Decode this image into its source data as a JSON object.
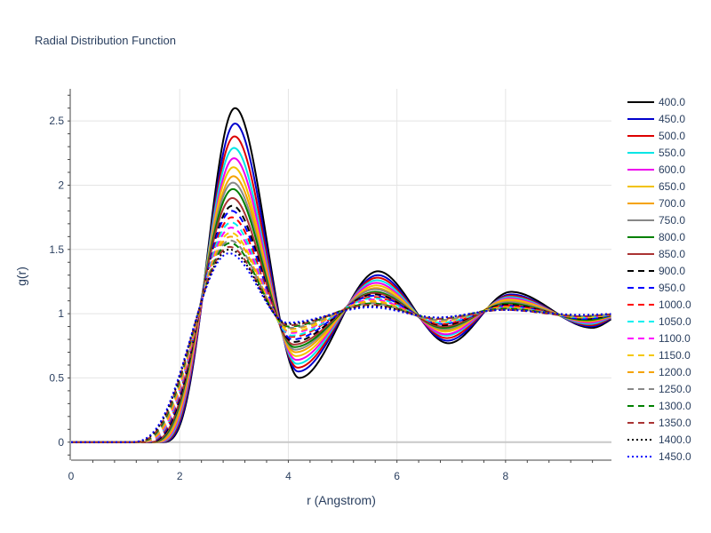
{
  "chart_data": {
    "type": "line",
    "title": "Radial Distribution Function",
    "xlabel": "r (Angstrom)",
    "ylabel": "g(r)",
    "xlim": [
      0,
      9.95
    ],
    "ylim": [
      -0.14,
      2.75
    ],
    "x_ticks": [
      0,
      2,
      4,
      6,
      8
    ],
    "y_ticks": [
      0,
      0.5,
      1,
      1.5,
      2,
      2.5
    ],
    "x_tick_labels": [
      "0",
      "2",
      "4",
      "6",
      "8"
    ],
    "y_tick_labels": [
      "0",
      "0.5",
      "1",
      "1.5",
      "2",
      "2.5"
    ],
    "grid": true,
    "legend_position": "right",
    "series": [
      {
        "name": "400.0",
        "color": "#000000",
        "dash": "solid",
        "peak1": [
          3.02,
          2.6
        ],
        "min1": [
          4.2,
          0.5
        ],
        "peak2": [
          5.65,
          1.33
        ],
        "min2": [
          6.95,
          0.77
        ],
        "peak3": [
          8.1,
          1.17
        ],
        "min3": [
          9.6,
          0.89
        ],
        "rise": 2.2
      },
      {
        "name": "450.0",
        "color": "#0000cc",
        "dash": "solid",
        "peak1": [
          3.02,
          2.48
        ],
        "min1": [
          4.18,
          0.55
        ],
        "peak2": [
          5.65,
          1.3
        ],
        "min2": [
          6.93,
          0.79
        ],
        "peak3": [
          8.1,
          1.15
        ],
        "min3": [
          9.58,
          0.9
        ],
        "rise": 2.17
      },
      {
        "name": "500.0",
        "color": "#dd0000",
        "dash": "solid",
        "peak1": [
          3.01,
          2.38
        ],
        "min1": [
          4.17,
          0.58
        ],
        "peak2": [
          5.64,
          1.28
        ],
        "min2": [
          6.92,
          0.81
        ],
        "peak3": [
          8.09,
          1.14
        ],
        "min3": [
          9.57,
          0.91
        ],
        "rise": 2.14
      },
      {
        "name": "550.0",
        "color": "#00e5e5",
        "dash": "solid",
        "peak1": [
          3.0,
          2.29
        ],
        "min1": [
          4.16,
          0.61
        ],
        "peak2": [
          5.63,
          1.26
        ],
        "min2": [
          6.91,
          0.83
        ],
        "peak3": [
          8.08,
          1.13
        ],
        "min3": [
          9.55,
          0.92
        ],
        "rise": 2.11
      },
      {
        "name": "600.0",
        "color": "#ee00ee",
        "dash": "solid",
        "peak1": [
          3.0,
          2.21
        ],
        "min1": [
          4.15,
          0.64
        ],
        "peak2": [
          5.62,
          1.24
        ],
        "min2": [
          6.9,
          0.84
        ],
        "peak3": [
          8.07,
          1.12
        ],
        "min3": [
          9.54,
          0.93
        ],
        "rise": 2.08
      },
      {
        "name": "650.0",
        "color": "#f2c200",
        "dash": "solid",
        "peak1": [
          2.99,
          2.14
        ],
        "min1": [
          4.14,
          0.67
        ],
        "peak2": [
          5.62,
          1.22
        ],
        "min2": [
          6.89,
          0.86
        ],
        "peak3": [
          8.06,
          1.11
        ],
        "min3": [
          9.53,
          0.94
        ],
        "rise": 2.05
      },
      {
        "name": "700.0",
        "color": "#f5a300",
        "dash": "solid",
        "peak1": [
          2.99,
          2.07
        ],
        "min1": [
          4.13,
          0.7
        ],
        "peak2": [
          5.61,
          1.2
        ],
        "min2": [
          6.88,
          0.87
        ],
        "peak3": [
          8.05,
          1.1
        ],
        "min3": [
          9.52,
          0.94
        ],
        "rise": 2.02
      },
      {
        "name": "750.0",
        "color": "#888888",
        "dash": "solid",
        "peak1": [
          2.98,
          2.02
        ],
        "min1": [
          4.12,
          0.72
        ],
        "peak2": [
          5.6,
          1.19
        ],
        "min2": [
          6.87,
          0.88
        ],
        "peak3": [
          8.05,
          1.09
        ],
        "min3": [
          9.51,
          0.95
        ],
        "rise": 1.99
      },
      {
        "name": "800.0",
        "color": "#008000",
        "dash": "solid",
        "peak1": [
          2.98,
          1.97
        ],
        "min1": [
          4.11,
          0.74
        ],
        "peak2": [
          5.6,
          1.17
        ],
        "min2": [
          6.86,
          0.89
        ],
        "peak3": [
          8.04,
          1.08
        ],
        "min3": [
          9.5,
          0.95
        ],
        "rise": 1.96
      },
      {
        "name": "850.0",
        "color": "#aa3333",
        "dash": "solid",
        "peak1": [
          2.97,
          1.9
        ],
        "min1": [
          4.1,
          0.76
        ],
        "peak2": [
          5.59,
          1.16
        ],
        "min2": [
          6.85,
          0.9
        ],
        "peak3": [
          8.03,
          1.07
        ],
        "min3": [
          9.49,
          0.96
        ],
        "rise": 1.93
      },
      {
        "name": "900.0",
        "color": "#000000",
        "dash": "dash",
        "peak1": [
          2.97,
          1.84
        ],
        "min1": [
          4.09,
          0.78
        ],
        "peak2": [
          5.58,
          1.15
        ],
        "min2": [
          6.84,
          0.91
        ],
        "peak3": [
          8.02,
          1.07
        ],
        "min3": [
          9.48,
          0.96
        ],
        "rise": 1.9
      },
      {
        "name": "950.0",
        "color": "#0000ff",
        "dash": "dash",
        "peak1": [
          2.96,
          1.8
        ],
        "min1": [
          4.08,
          0.8
        ],
        "peak2": [
          5.58,
          1.14
        ],
        "min2": [
          6.83,
          0.92
        ],
        "peak3": [
          8.02,
          1.06
        ],
        "min3": [
          9.47,
          0.96
        ],
        "rise": 1.87
      },
      {
        "name": "1000.0",
        "color": "#ff0000",
        "dash": "dash",
        "peak1": [
          2.96,
          1.75
        ],
        "min1": [
          4.07,
          0.82
        ],
        "peak2": [
          5.57,
          1.13
        ],
        "min2": [
          6.82,
          0.92
        ],
        "peak3": [
          8.01,
          1.06
        ],
        "min3": [
          9.46,
          0.97
        ],
        "rise": 1.84
      },
      {
        "name": "1050.0",
        "color": "#00f0f0",
        "dash": "dash",
        "peak1": [
          2.95,
          1.71
        ],
        "min1": [
          4.06,
          0.83
        ],
        "peak2": [
          5.56,
          1.12
        ],
        "min2": [
          6.81,
          0.93
        ],
        "peak3": [
          8.0,
          1.05
        ],
        "min3": [
          9.45,
          0.97
        ],
        "rise": 1.81
      },
      {
        "name": "1100.0",
        "color": "#ff00ff",
        "dash": "dash",
        "peak1": [
          2.95,
          1.67
        ],
        "min1": [
          4.05,
          0.85
        ],
        "peak2": [
          5.56,
          1.11
        ],
        "min2": [
          6.8,
          0.94
        ],
        "peak3": [
          8.0,
          1.05
        ],
        "min3": [
          9.44,
          0.97
        ],
        "rise": 1.78
      },
      {
        "name": "1150.0",
        "color": "#f5c800",
        "dash": "dash",
        "peak1": [
          2.94,
          1.63
        ],
        "min1": [
          4.04,
          0.86
        ],
        "peak2": [
          5.55,
          1.1
        ],
        "min2": [
          6.79,
          0.94
        ],
        "peak3": [
          7.99,
          1.05
        ],
        "min3": [
          9.43,
          0.97
        ],
        "rise": 1.75
      },
      {
        "name": "1200.0",
        "color": "#f5a300",
        "dash": "dash",
        "peak1": [
          2.94,
          1.6
        ],
        "min1": [
          4.03,
          0.88
        ],
        "peak2": [
          5.55,
          1.09
        ],
        "min2": [
          6.78,
          0.95
        ],
        "peak3": [
          7.99,
          1.04
        ],
        "min3": [
          9.42,
          0.98
        ],
        "rise": 1.72
      },
      {
        "name": "1250.0",
        "color": "#888888",
        "dash": "dash",
        "peak1": [
          2.93,
          1.57
        ],
        "min1": [
          4.02,
          0.89
        ],
        "peak2": [
          5.54,
          1.08
        ],
        "min2": [
          6.77,
          0.95
        ],
        "peak3": [
          7.98,
          1.04
        ],
        "min3": [
          9.41,
          0.98
        ],
        "rise": 1.69
      },
      {
        "name": "1300.0",
        "color": "#008000",
        "dash": "dash",
        "peak1": [
          2.93,
          1.55
        ],
        "min1": [
          4.01,
          0.9
        ],
        "peak2": [
          5.54,
          1.08
        ],
        "min2": [
          6.76,
          0.96
        ],
        "peak3": [
          7.98,
          1.04
        ],
        "min3": [
          9.4,
          0.98
        ],
        "rise": 1.66
      },
      {
        "name": "1350.0",
        "color": "#aa3333",
        "dash": "dash",
        "peak1": [
          2.92,
          1.52
        ],
        "min1": [
          4.0,
          0.91
        ],
        "peak2": [
          5.53,
          1.07
        ],
        "min2": [
          6.75,
          0.96
        ],
        "peak3": [
          7.97,
          1.03
        ],
        "min3": [
          9.39,
          0.98
        ],
        "rise": 1.63
      },
      {
        "name": "1400.0",
        "color": "#000000",
        "dash": "dot",
        "peak1": [
          2.92,
          1.5
        ],
        "min1": [
          3.99,
          0.92
        ],
        "peak2": [
          5.53,
          1.06
        ],
        "min2": [
          6.74,
          0.97
        ],
        "peak3": [
          7.97,
          1.03
        ],
        "min3": [
          9.38,
          0.99
        ],
        "rise": 1.6
      },
      {
        "name": "1450.0",
        "color": "#0000ff",
        "dash": "dot",
        "peak1": [
          2.91,
          1.47
        ],
        "min1": [
          3.98,
          0.93
        ],
        "peak2": [
          5.52,
          1.05
        ],
        "min2": [
          6.73,
          0.97
        ],
        "peak3": [
          7.96,
          1.03
        ],
        "min3": [
          9.37,
          0.99
        ],
        "rise": 1.57
      }
    ]
  }
}
